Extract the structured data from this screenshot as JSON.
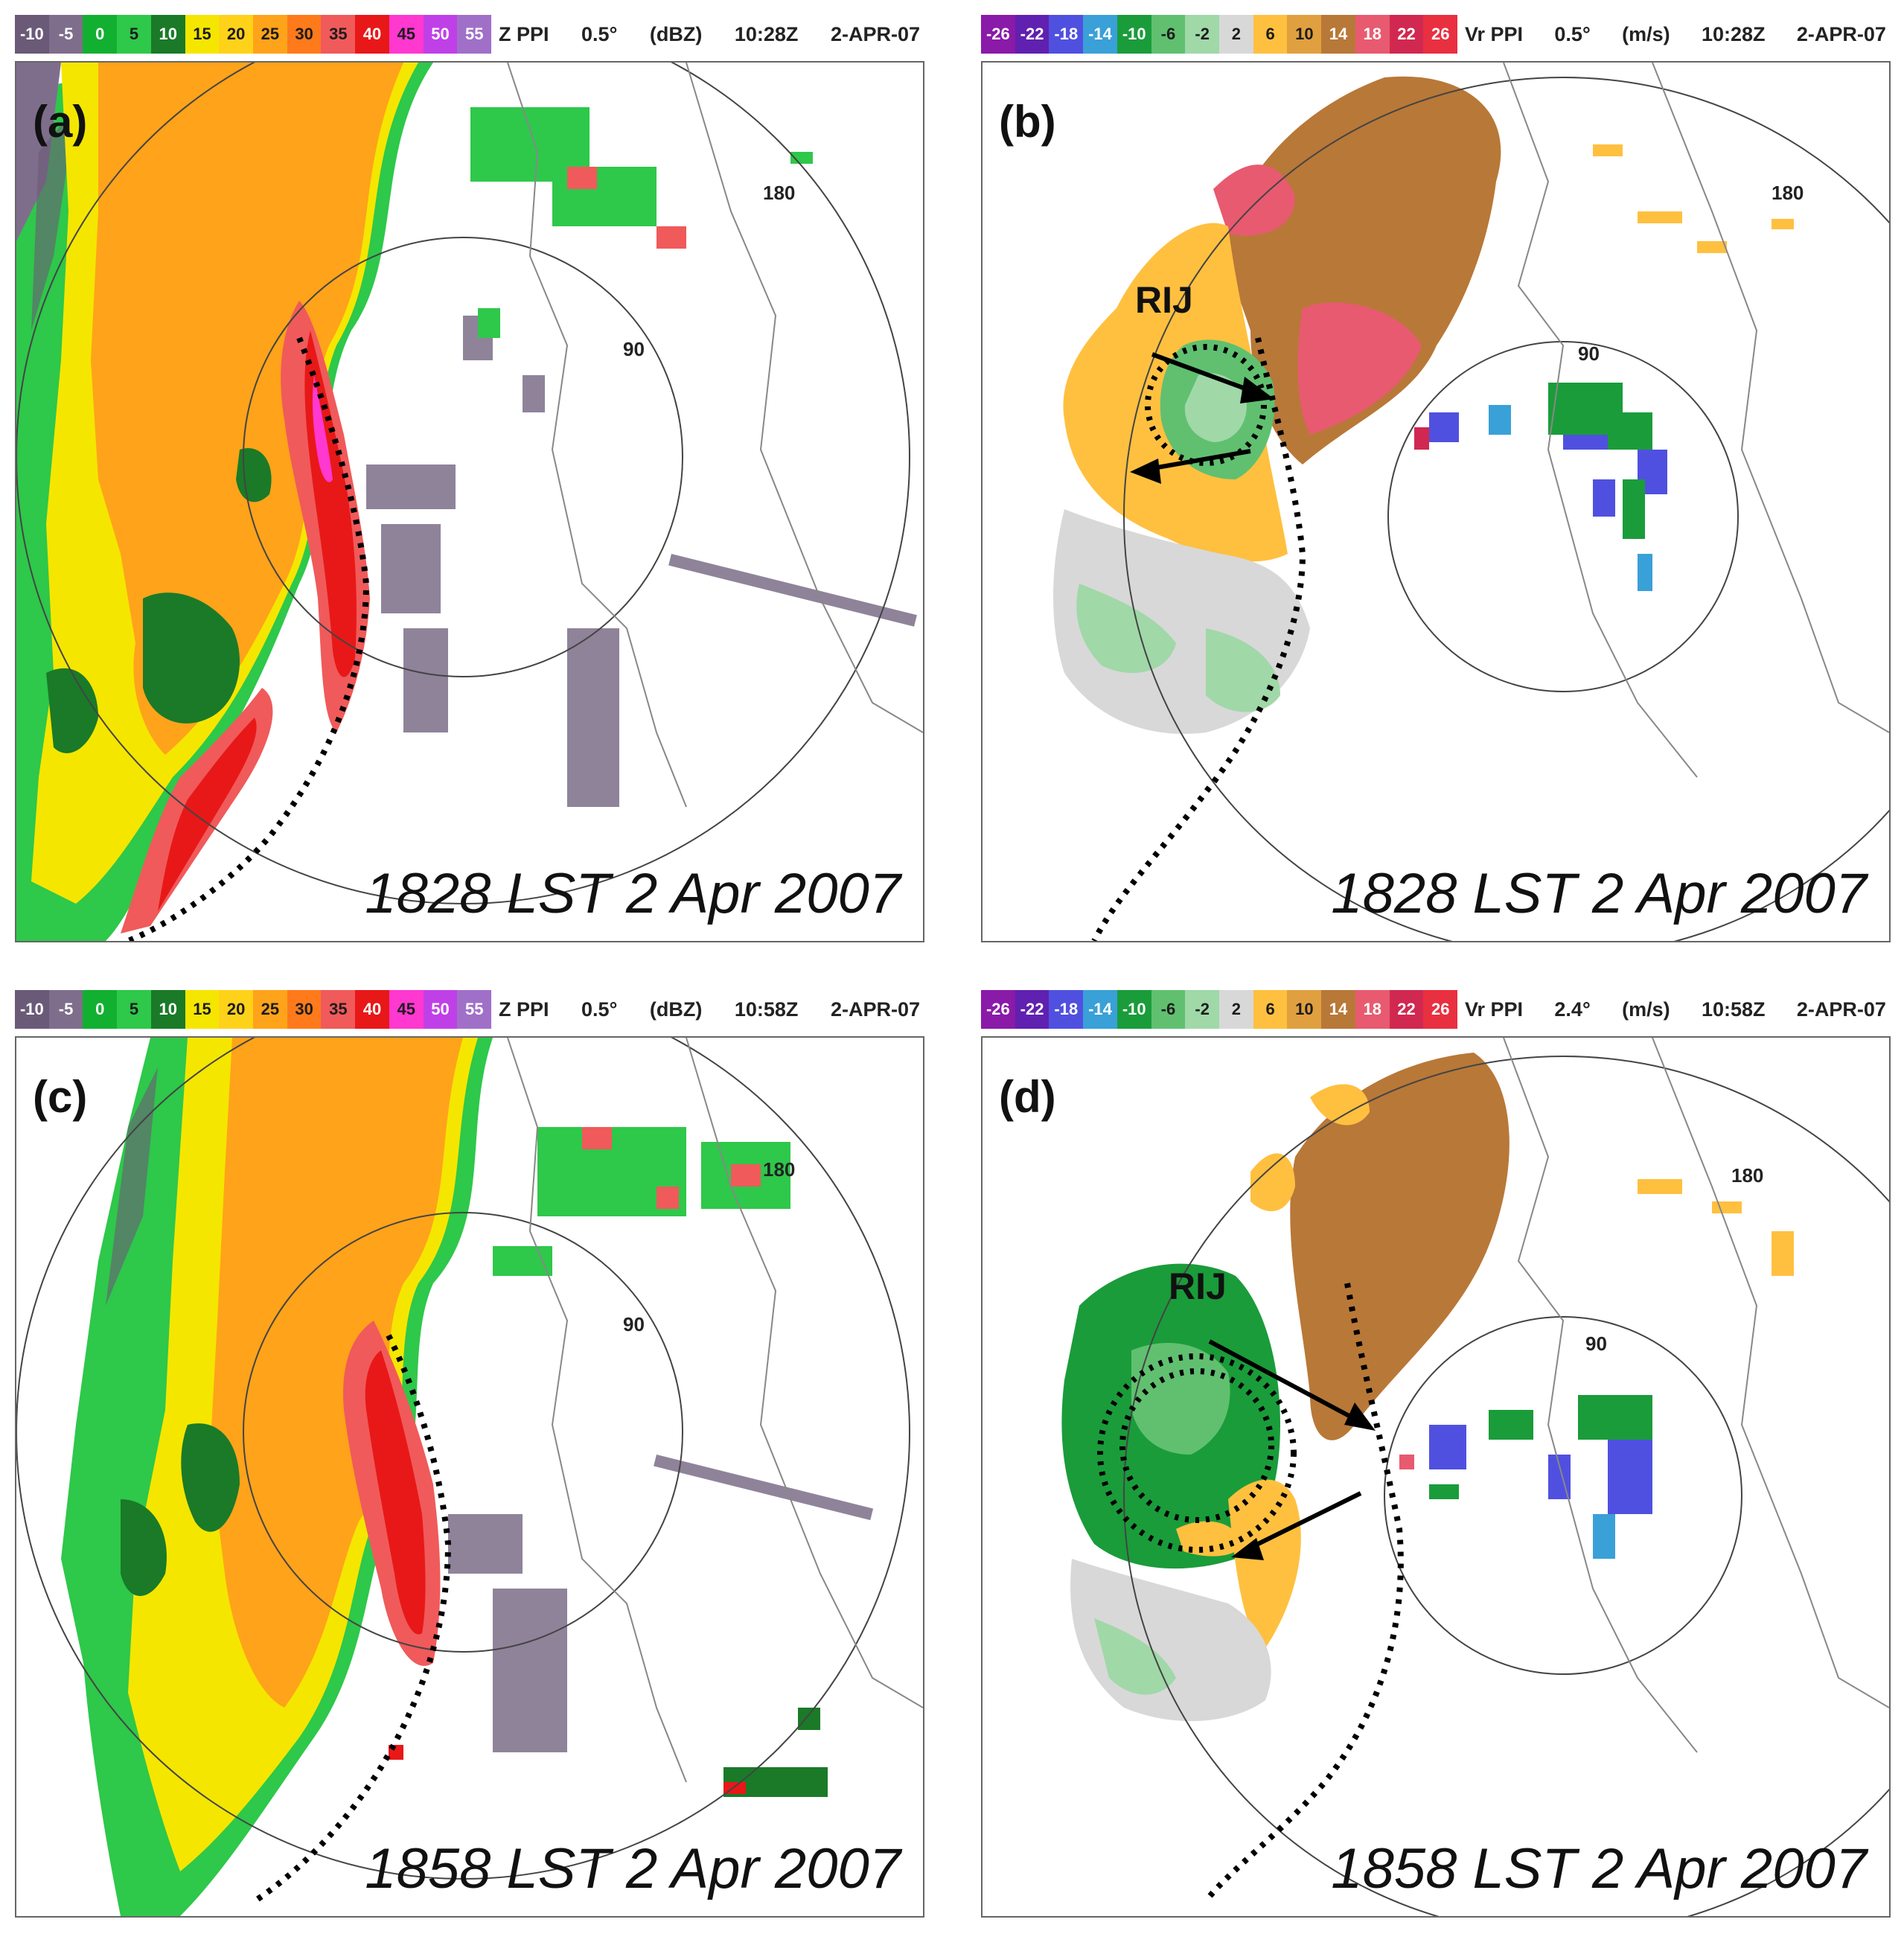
{
  "colors": {
    "refl": [
      "#6a5a78",
      "#7e6e8c",
      "#12b030",
      "#2ec84a",
      "#1a7a28",
      "#f5e600",
      "#ffd21a",
      "#ffa31a",
      "#ff7a1a",
      "#f05a5a",
      "#e81818",
      "#ff38d0",
      "#c040e8",
      "#a070c8"
    ],
    "vel": [
      "#8a1aa8",
      "#6020b0",
      "#5050e0",
      "#3aa0d8",
      "#1a9c3a",
      "#60c070",
      "#a0d8a8",
      "#d8d8d8",
      "#f2f2f2",
      "#ffc040",
      "#e0a040",
      "#b87838",
      "#e85a70",
      "#d02850"
    ]
  },
  "panels": [
    {
      "label": "(a)",
      "product": "Z PPI",
      "elev": "0.5°",
      "unit": "(dBZ)",
      "time_utc": "10:28Z",
      "date": "2-APR-07",
      "scale": [
        "-10",
        "-5",
        "0",
        "5",
        "10",
        "15",
        "20",
        "25",
        "30",
        "35",
        "40",
        "45",
        "50",
        "55"
      ],
      "ring_inner": "90",
      "ring_outer": "180",
      "timestamp": "1828 LST 2 Apr 2007"
    },
    {
      "label": "(b)",
      "product": "Vr PPI",
      "elev": "0.5°",
      "unit": "(m/s)",
      "time_utc": "10:28Z",
      "date": "2-APR-07",
      "scale": [
        "-26",
        "-22",
        "-18",
        "-14",
        "-10",
        "-6",
        "-2",
        "2",
        "6",
        "10",
        "14",
        "18",
        "22",
        "26"
      ],
      "ring_inner": "90",
      "ring_outer": "180",
      "annotation": "RIJ",
      "timestamp": "1828 LST 2 Apr 2007"
    },
    {
      "label": "(c)",
      "product": "Z PPI",
      "elev": "0.5°",
      "unit": "(dBZ)",
      "time_utc": "10:58Z",
      "date": "2-APR-07",
      "scale": [
        "-10",
        "-5",
        "0",
        "5",
        "10",
        "15",
        "20",
        "25",
        "30",
        "35",
        "40",
        "45",
        "50",
        "55"
      ],
      "ring_inner": "90",
      "ring_outer": "180",
      "timestamp": "1858 LST 2 Apr 2007"
    },
    {
      "label": "(d)",
      "product": "Vr PPI",
      "elev": "2.4°",
      "unit": "(m/s)",
      "time_utc": "10:58Z",
      "date": "2-APR-07",
      "scale": [
        "-26",
        "-22",
        "-18",
        "-14",
        "-10",
        "-6",
        "-2",
        "2",
        "6",
        "10",
        "14",
        "18",
        "22",
        "26"
      ],
      "ring_inner": "90",
      "ring_outer": "180",
      "annotation": "RIJ",
      "timestamp": "1858 LST 2 Apr 2007"
    }
  ]
}
